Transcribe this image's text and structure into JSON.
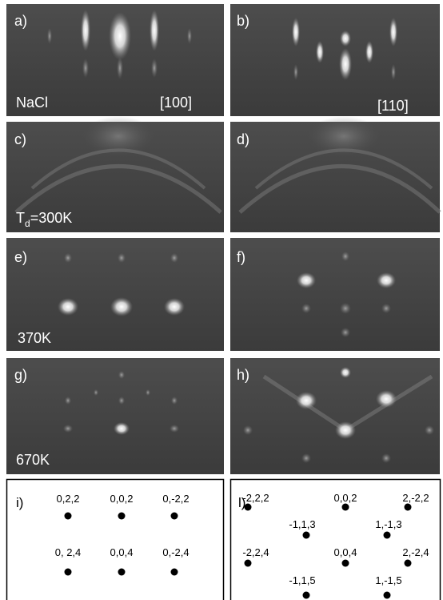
{
  "panels": [
    "a)",
    "b)",
    "c)",
    "d)",
    "e)",
    "f)",
    "g)",
    "h)"
  ],
  "annotations": {
    "nacl": "NaCl",
    "zone_100": "[100]",
    "zone_110": "[110]",
    "temp_300": {
      "main": "T",
      "sub": "d",
      "rest": "=300K"
    },
    "temp_370": "370K",
    "temp_670": "670K"
  },
  "diagram_i": {
    "label": "i)",
    "nodes": [
      "0,2,2",
      "0,0,2",
      "0,-2,2",
      "0, 2,4",
      "0,0,4",
      "0,-2,4"
    ]
  },
  "diagram_l": {
    "label": "l)",
    "nodes": [
      "-2,2,2",
      "0,0,2",
      "2,-2,2",
      "-1,1,3",
      "1,-1,3",
      "-2,2,4",
      "0,0,4",
      "2,-2,4",
      "-1,1,5",
      "1,-1,5"
    ]
  }
}
